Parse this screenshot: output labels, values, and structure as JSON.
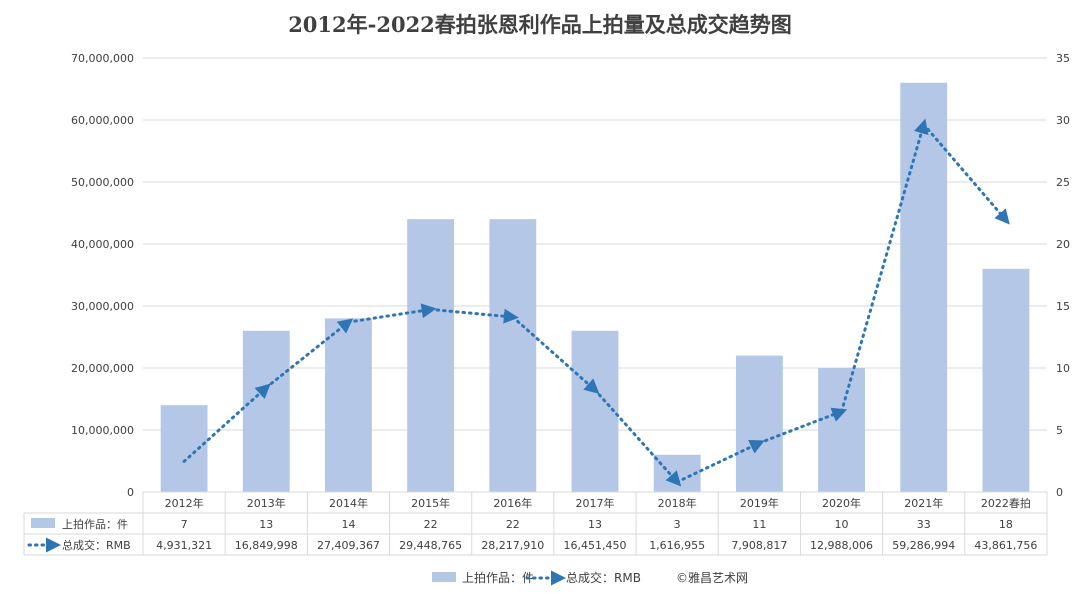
{
  "chart_data": {
    "type": "bar+line",
    "title": "2012年-2022春拍张恩利作品上拍量及总成交趋势图",
    "categories": [
      "2012年",
      "2013年",
      "2014年",
      "2015年",
      "2016年",
      "2017年",
      "2018年",
      "2019年",
      "2020年",
      "2021年",
      "2022春拍"
    ],
    "series": [
      {
        "name": "上拍作品：件",
        "type": "bar",
        "axis": "right",
        "color": "#b4c7e7",
        "values": [
          7,
          13,
          14,
          22,
          22,
          13,
          3,
          11,
          10,
          33,
          18
        ],
        "labels": [
          "7",
          "13",
          "14",
          "22",
          "22",
          "13",
          "3",
          "11",
          "10",
          "33",
          "18"
        ]
      },
      {
        "name": "总成交：RMB",
        "type": "line",
        "style": "dotted-arrow",
        "axis": "left",
        "color": "#2e75b6",
        "values": [
          4931321,
          16849998,
          27409367,
          29448765,
          28217910,
          16451450,
          1616955,
          7908817,
          12988006,
          59286994,
          43861756
        ],
        "labels": [
          "4,931,321",
          "16,849,998",
          "27,409,367",
          "29,448,765",
          "28,217,910",
          "16,451,450",
          "1,616,955",
          "7,908,817",
          "12,988,006",
          "59,286,994",
          "43,861,756"
        ]
      }
    ],
    "y_left": {
      "min": 0,
      "max": 70000000,
      "ticks": [
        "0",
        "10,000,000",
        "20,000,000",
        "30,000,000",
        "40,000,000",
        "50,000,000",
        "60,000,000",
        "70,000,000"
      ]
    },
    "y_right": {
      "min": 0,
      "max": 35,
      "ticks": [
        "0",
        "5",
        "10",
        "15",
        "20",
        "25",
        "30",
        "35"
      ]
    },
    "grid": true,
    "data_table": true,
    "legend_position": "bottom",
    "watermark": "©雅昌艺术网"
  }
}
